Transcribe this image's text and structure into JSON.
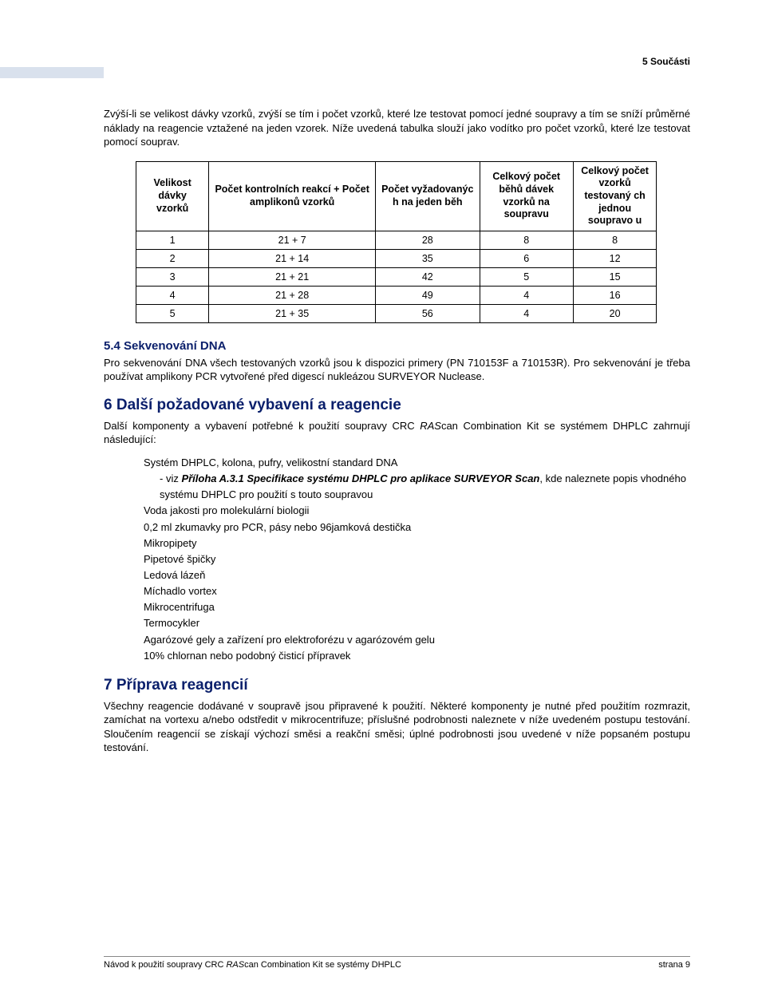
{
  "header": {
    "running_title": "5 Součásti"
  },
  "intro": {
    "p1": "Zvýší-li se velikost dávky vzorků, zvýší se tím i počet vzorků, které lze testovat pomocí jedné soupravy a tím se sníží průměrné náklady na reagencie vztažené na jeden vzorek. Níže uvedená tabulka slouží jako vodítko pro počet vzorků, které lze testovat pomocí souprav."
  },
  "table": {
    "headers": {
      "c1": "Velikost dávky vzorků",
      "c2": "Počet kontrolních reakcí + Počet amplikonů vzorků",
      "c3": "Počet vyžadovanýc h na jeden běh",
      "c4": "Celkový počet běhů dávek vzorků na soupravu",
      "c5": "Celkový počet vzorků testovaný ch jednou soupravo u"
    },
    "rows": [
      {
        "c1": "1",
        "c2": "21 + 7",
        "c3": "28",
        "c4": "8",
        "c5": "8"
      },
      {
        "c1": "2",
        "c2": "21 + 14",
        "c3": "35",
        "c4": "6",
        "c5": "12"
      },
      {
        "c1": "3",
        "c2": "21 + 21",
        "c3": "42",
        "c4": "5",
        "c5": "15"
      },
      {
        "c1": "4",
        "c2": "21 + 28",
        "c3": "49",
        "c4": "4",
        "c5": "16"
      },
      {
        "c1": "5",
        "c2": "21 + 35",
        "c3": "56",
        "c4": "4",
        "c5": "20"
      }
    ]
  },
  "sec54": {
    "title": "5.4 Sekvenování DNA",
    "p": "Pro sekvenování DNA všech testovaných vzorků jsou k dispozici primery (PN 710153F a 710153R). Pro sekvenování je třeba používat amplikony PCR vytvořené před digescí nukleázou SURVEYOR Nuclease."
  },
  "sec6": {
    "title": "6 Další požadované vybavení a reagencie",
    "lead_a": "Další komponenty a vybavení potřebné k použití soupravy CRC ",
    "lead_i": "RAS",
    "lead_b": "can Combination Kit se systémem DHPLC zahrnují následující:",
    "items": {
      "i1": "Systém DHPLC, kolona, pufry, velikostní standard DNA",
      "i1b_a": "- viz ",
      "i1b_b": "Příloha A.3.1 Specifikace systému DHPLC pro aplikace SURVEYOR Scan",
      "i1b_c": ", kde naleznete popis vhodného systému DHPLC pro použití s touto soupravou",
      "i2": "Voda jakosti pro molekulární biologii",
      "i3": "0,2 ml zkumavky pro PCR, pásy nebo 96jamková destička",
      "i4": "Mikropipety",
      "i5": "Pipetové špičky",
      "i6": "Ledová lázeň",
      "i7": "Míchadlo vortex",
      "i8": "Mikrocentrifuga",
      "i9": "Termocykler",
      "i10": "Agarózové gely a zařízení pro elektroforézu v agarózovém gelu",
      "i11": "10% chlornan nebo podobný čisticí přípravek"
    }
  },
  "sec7": {
    "title": "7 Příprava reagencií",
    "p": "Všechny reagencie dodávané v soupravě jsou připravené k použití. Některé komponenty je nutné před použitím rozmrazit, zamíchat na vortexu a/nebo odstředit v mikrocentrifuze; příslušné podrobnosti naleznete v níže uvedeném postupu testování. Sloučením reagencií se získají výchozí směsi a reakční směsi; úplné podrobnosti jsou uvedené v níže popsaném postupu testování."
  },
  "footer": {
    "left_a": "Návod k použití soupravy CRC ",
    "left_i": "RAS",
    "left_b": "can Combination Kit se systémy DHPLC",
    "right": "strana 9"
  }
}
